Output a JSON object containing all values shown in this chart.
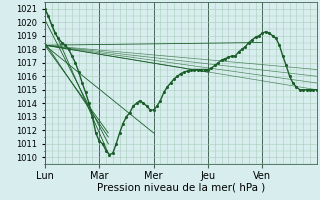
{
  "title": "",
  "xlabel": "Pression niveau de la mer( hPa )",
  "ylabel": "",
  "bg_color": "#d8eeee",
  "grid_color": "#aaccbb",
  "line_color": "#1a5e2a",
  "ylim": [
    1009.5,
    1021.5
  ],
  "yticks": [
    1010,
    1011,
    1012,
    1013,
    1014,
    1015,
    1016,
    1017,
    1018,
    1019,
    1020,
    1021
  ],
  "day_labels": [
    "Lun",
    "Mar",
    "Mer",
    "Jeu",
    "Ven"
  ],
  "day_positions": [
    0,
    48,
    96,
    144,
    192
  ],
  "total_hours": 240,
  "forecast_lines": [
    [
      0,
      1021.0,
      56,
      1010.3
    ],
    [
      0,
      1020.2,
      56,
      1011.0
    ],
    [
      0,
      1018.5,
      56,
      1011.5
    ],
    [
      0,
      1018.3,
      56,
      1011.8
    ],
    [
      0,
      1018.3,
      96,
      1011.8
    ],
    [
      0,
      1018.3,
      144,
      1016.3
    ],
    [
      0,
      1018.3,
      192,
      1018.5
    ]
  ],
  "extra_lines": [
    [
      0,
      1018.3,
      240,
      1015.0
    ],
    [
      0,
      1018.3,
      240,
      1015.5
    ],
    [
      0,
      1018.3,
      240,
      1016.0
    ],
    [
      0,
      1018.3,
      240,
      1016.5
    ]
  ],
  "main_curve": [
    [
      0,
      1021.0
    ],
    [
      3,
      1020.5
    ],
    [
      6,
      1019.8
    ],
    [
      9,
      1019.2
    ],
    [
      12,
      1018.8
    ],
    [
      15,
      1018.5
    ],
    [
      18,
      1018.3
    ],
    [
      21,
      1018.0
    ],
    [
      24,
      1017.5
    ],
    [
      27,
      1017.0
    ],
    [
      30,
      1016.3
    ],
    [
      33,
      1015.5
    ],
    [
      36,
      1014.8
    ],
    [
      39,
      1014.0
    ],
    [
      42,
      1013.0
    ],
    [
      45,
      1011.8
    ],
    [
      48,
      1011.2
    ],
    [
      51,
      1011.0
    ],
    [
      54,
      1010.5
    ],
    [
      57,
      1010.2
    ],
    [
      60,
      1010.3
    ],
    [
      63,
      1011.0
    ],
    [
      66,
      1011.8
    ],
    [
      69,
      1012.5
    ],
    [
      72,
      1013.0
    ],
    [
      75,
      1013.3
    ],
    [
      78,
      1013.8
    ],
    [
      81,
      1014.0
    ],
    [
      84,
      1014.2
    ],
    [
      87,
      1014.0
    ],
    [
      90,
      1013.8
    ],
    [
      93,
      1013.5
    ],
    [
      96,
      1013.5
    ],
    [
      99,
      1013.8
    ],
    [
      102,
      1014.2
    ],
    [
      105,
      1014.8
    ],
    [
      108,
      1015.2
    ],
    [
      111,
      1015.5
    ],
    [
      114,
      1015.8
    ],
    [
      117,
      1016.0
    ],
    [
      120,
      1016.2
    ],
    [
      123,
      1016.3
    ],
    [
      126,
      1016.4
    ],
    [
      129,
      1016.5
    ],
    [
      132,
      1016.5
    ],
    [
      135,
      1016.5
    ],
    [
      138,
      1016.5
    ],
    [
      141,
      1016.5
    ],
    [
      144,
      1016.5
    ],
    [
      147,
      1016.6
    ],
    [
      150,
      1016.8
    ],
    [
      153,
      1017.0
    ],
    [
      156,
      1017.2
    ],
    [
      159,
      1017.3
    ],
    [
      162,
      1017.4
    ],
    [
      165,
      1017.5
    ],
    [
      168,
      1017.5
    ],
    [
      171,
      1017.8
    ],
    [
      174,
      1018.0
    ],
    [
      177,
      1018.2
    ],
    [
      180,
      1018.5
    ],
    [
      183,
      1018.7
    ],
    [
      186,
      1018.9
    ],
    [
      189,
      1019.0
    ],
    [
      192,
      1019.2
    ],
    [
      195,
      1019.3
    ],
    [
      198,
      1019.2
    ],
    [
      201,
      1019.0
    ],
    [
      204,
      1018.8
    ],
    [
      207,
      1018.3
    ],
    [
      210,
      1017.5
    ],
    [
      213,
      1016.8
    ],
    [
      216,
      1016.0
    ],
    [
      219,
      1015.5
    ],
    [
      222,
      1015.2
    ],
    [
      225,
      1015.0
    ],
    [
      228,
      1015.0
    ],
    [
      231,
      1015.0
    ],
    [
      234,
      1015.0
    ],
    [
      237,
      1015.0
    ],
    [
      240,
      1015.0
    ]
  ]
}
